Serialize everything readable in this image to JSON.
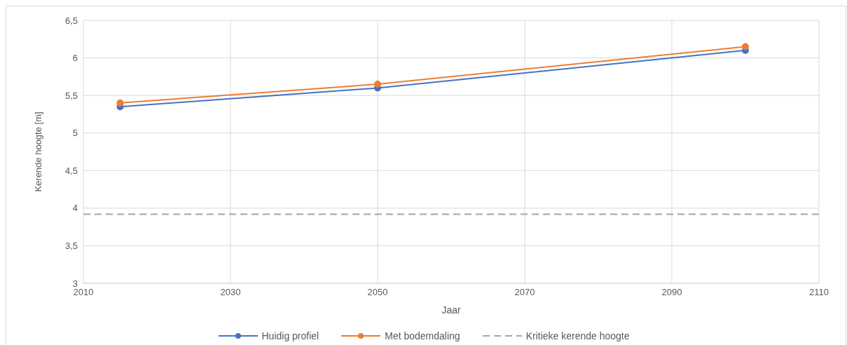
{
  "chart_data": {
    "type": "line",
    "xlabel": "Jaar",
    "ylabel": "Kerende hoogte [m]",
    "series": [
      {
        "name": "Huidig profiel",
        "color": "#4472c4",
        "x": [
          2015,
          2050,
          2100
        ],
        "values": [
          5.35,
          5.6,
          6.1
        ]
      },
      {
        "name": "Met bodemdaling",
        "color": "#ed7d31",
        "x": [
          2015,
          2050,
          2100
        ],
        "values": [
          5.4,
          5.65,
          6.15
        ]
      }
    ],
    "ref_lines": [
      {
        "axis": "y",
        "value": 3.92,
        "label": "Kritieke kerende hoogte",
        "color": "#a5a5a5",
        "line_style": "dashed"
      }
    ],
    "xlim": [
      2010,
      2110
    ],
    "xticks": [
      2010,
      2030,
      2050,
      2070,
      2090,
      2110
    ],
    "ylim": [
      3,
      6.5
    ],
    "yticks": [
      3,
      {
        "value": 3.5,
        "label": "3,5"
      },
      4,
      {
        "value": 4.5,
        "label": "4,5"
      },
      5,
      {
        "value": 5.5,
        "label": "5,5"
      },
      6,
      {
        "value": 6.5,
        "label": "6,5"
      }
    ],
    "grid": true,
    "legend": "bottom",
    "marker": "circle",
    "line_style": "solid"
  }
}
